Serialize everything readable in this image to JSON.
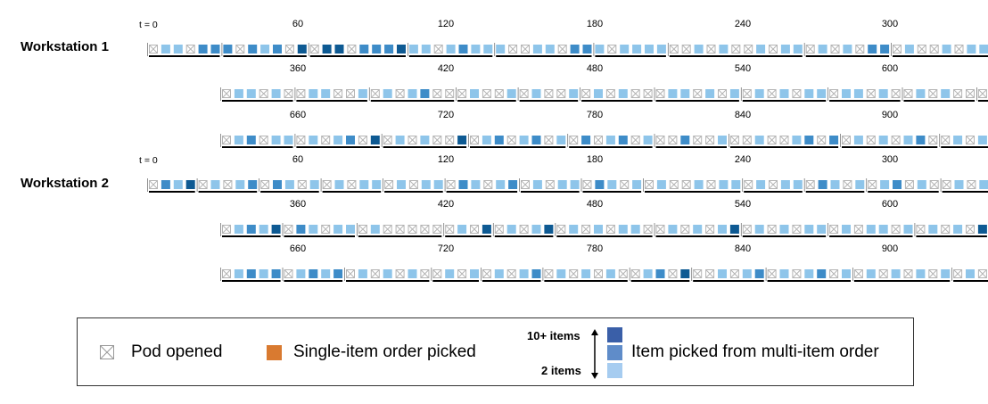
{
  "workstations": [
    {
      "label": "Workstation 1",
      "t0_label": "t = 0",
      "rows": [
        {
          "tick_labels": [
            "60",
            "120",
            "180",
            "240",
            "300"
          ],
          "groups": [
            "p11p22",
            "2p212p3",
            "p33p2223",
            "11p1211",
            "1pp11p22",
            "1p1111",
            "pp1p1pp1p11",
            "p1p1p22",
            "p1pp1p11",
            "2p1p1p2",
            "1p11pp1p1pp",
            "1p1pp1p1pp",
            "1pp1",
            "p1p1p1pp",
            "p1pp1pp",
            "2p1pp1pp1p",
            "p11pp1pp1p",
            "11p11pp12p1",
            "p11p1p1pp",
            "2p12pppp",
            "2p1pp1pp1p",
            "p1pp1p11",
            "p1pp1p11",
            "p11pp1p11p",
            "pp1p"
          ]
        },
        {
          "tick_labels": [
            "360",
            "420",
            "480",
            "540",
            "600"
          ],
          "groups": [
            "p11p1p",
            "p11pp1",
            "p1p12pp",
            "p1pp1",
            "p1pp1",
            "p1p1pp",
            "p11p1p1",
            "p1p1p11",
            "p11p1p",
            "p1p1pp",
            "p11p11",
            "pp1p1",
            "p11p11p1",
            "p1p1p1pp",
            "p11p12p",
            "p1p1p3",
            "pp2p3"
          ]
        },
        {
          "tick_labels": [
            "660",
            "720",
            "780",
            "840",
            "900"
          ],
          "groups": [
            "p12p11",
            "p1p12p3",
            "p1p1pp3",
            "p12p12p1",
            "p2p12p1",
            "pp2pp1",
            "pp1pp12p2",
            "p1p1p12p",
            "p1p1p1p",
            "2p1p1pp",
            "p12p1pp",
            "2p12pp1p",
            "p1p1pp3",
            "p2p1p3",
            "p2pp3p"
          ]
        }
      ]
    },
    {
      "label": "Workstation 2",
      "t0_label": "t = 0",
      "rows": [
        {
          "tick_labels": [
            "60",
            "120",
            "180",
            "240",
            "300"
          ],
          "groups": [
            "p213",
            "p1p12",
            "p21p1",
            "p1p11",
            "p1p11",
            "p21p12",
            "p1p11",
            "p21p1",
            "p1pp1p11",
            "p1p11",
            "p21p1",
            "p12p1p",
            "p1p12",
            "p1p12p",
            "p21p1",
            "p12p1pp",
            "p1pp1p",
            "p1p12p",
            "p1p1p11"
          ]
        },
        {
          "tick_labels": [
            "360",
            "420",
            "480",
            "540",
            "600"
          ],
          "groups": [
            "p1213",
            "p21p11",
            "p1ppppp",
            "p1p3",
            "p1p13",
            "p1p1p11p",
            "p1p1p13",
            "p1p1p11",
            "p1p11p1",
            "p1p1p3",
            "p1p12p1",
            "p13p12"
          ]
        },
        {
          "tick_labels": [
            "660",
            "720",
            "780",
            "840",
            "900"
          ],
          "groups": [
            "p1212",
            "p1212",
            "p1p1p1p",
            "p1p1",
            "p1p12",
            "p1p1p1p",
            "p12p3",
            "pp1p12",
            "p1p12p1",
            "p1p1p1p1",
            "p1pp1p",
            "p1p1p1",
            "p1p1pp3",
            "p1p1p1p",
            "p1p1p2",
            "p1pp1p"
          ]
        }
      ]
    }
  ],
  "colors": {
    "single_item": "#D97A30",
    "multi_item_2": "#8EC5EA",
    "multi_item_mid": "#3E8CC8",
    "multi_item_10plus": "#0E5A93",
    "pod_opened": "#b5b5b5",
    "axis": "#000000"
  },
  "legend": {
    "pod_opened_label": "Pod opened",
    "single_item_label": "Single-item order picked",
    "multi_item_label": "Item picked from multi-item order",
    "upper_bound_label": "10+ items",
    "lower_bound_label": "2 items",
    "shade_colors": [
      "#3A5FA8",
      "#5F8CC9",
      "#A6CCF0"
    ]
  }
}
